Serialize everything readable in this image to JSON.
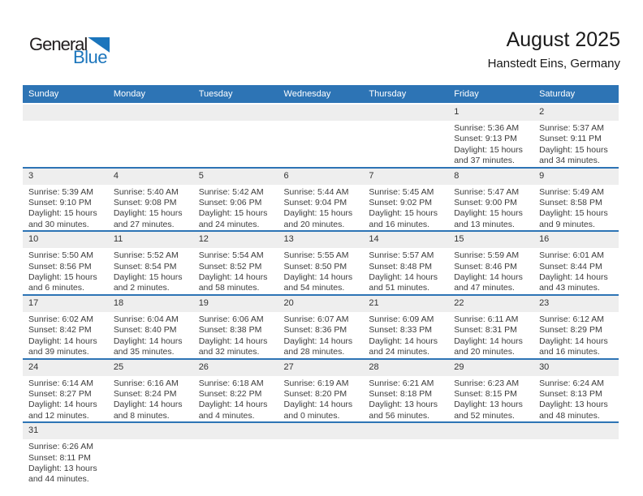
{
  "colors": {
    "header_blue": "#2D74B5",
    "separator_blue": "#2D74B5",
    "date_band_gray": "#EEEEEE",
    "logo_blue": "#1B75BC",
    "title_text": "#1A1A1A"
  },
  "logo": {
    "line1": "General",
    "line2": "Blue"
  },
  "header": {
    "title": "August 2025",
    "subtitle": "Hanstedt Eins, Germany"
  },
  "calendar": {
    "weekdays": [
      "Sunday",
      "Monday",
      "Tuesday",
      "Wednesday",
      "Thursday",
      "Friday",
      "Saturday"
    ],
    "weeks": [
      {
        "days": [
          {
            "date": ""
          },
          {
            "date": ""
          },
          {
            "date": ""
          },
          {
            "date": ""
          },
          {
            "date": ""
          },
          {
            "date": "1",
            "sunrise": "Sunrise: 5:36 AM",
            "sunset": "Sunset: 9:13 PM",
            "daylight1": "Daylight: 15 hours",
            "daylight2": "and 37 minutes."
          },
          {
            "date": "2",
            "sunrise": "Sunrise: 5:37 AM",
            "sunset": "Sunset: 9:11 PM",
            "daylight1": "Daylight: 15 hours",
            "daylight2": "and 34 minutes."
          }
        ]
      },
      {
        "days": [
          {
            "date": "3",
            "sunrise": "Sunrise: 5:39 AM",
            "sunset": "Sunset: 9:10 PM",
            "daylight1": "Daylight: 15 hours",
            "daylight2": "and 30 minutes."
          },
          {
            "date": "4",
            "sunrise": "Sunrise: 5:40 AM",
            "sunset": "Sunset: 9:08 PM",
            "daylight1": "Daylight: 15 hours",
            "daylight2": "and 27 minutes."
          },
          {
            "date": "5",
            "sunrise": "Sunrise: 5:42 AM",
            "sunset": "Sunset: 9:06 PM",
            "daylight1": "Daylight: 15 hours",
            "daylight2": "and 24 minutes."
          },
          {
            "date": "6",
            "sunrise": "Sunrise: 5:44 AM",
            "sunset": "Sunset: 9:04 PM",
            "daylight1": "Daylight: 15 hours",
            "daylight2": "and 20 minutes."
          },
          {
            "date": "7",
            "sunrise": "Sunrise: 5:45 AM",
            "sunset": "Sunset: 9:02 PM",
            "daylight1": "Daylight: 15 hours",
            "daylight2": "and 16 minutes."
          },
          {
            "date": "8",
            "sunrise": "Sunrise: 5:47 AM",
            "sunset": "Sunset: 9:00 PM",
            "daylight1": "Daylight: 15 hours",
            "daylight2": "and 13 minutes."
          },
          {
            "date": "9",
            "sunrise": "Sunrise: 5:49 AM",
            "sunset": "Sunset: 8:58 PM",
            "daylight1": "Daylight: 15 hours",
            "daylight2": "and 9 minutes."
          }
        ]
      },
      {
        "days": [
          {
            "date": "10",
            "sunrise": "Sunrise: 5:50 AM",
            "sunset": "Sunset: 8:56 PM",
            "daylight1": "Daylight: 15 hours",
            "daylight2": "and 6 minutes."
          },
          {
            "date": "11",
            "sunrise": "Sunrise: 5:52 AM",
            "sunset": "Sunset: 8:54 PM",
            "daylight1": "Daylight: 15 hours",
            "daylight2": "and 2 minutes."
          },
          {
            "date": "12",
            "sunrise": "Sunrise: 5:54 AM",
            "sunset": "Sunset: 8:52 PM",
            "daylight1": "Daylight: 14 hours",
            "daylight2": "and 58 minutes."
          },
          {
            "date": "13",
            "sunrise": "Sunrise: 5:55 AM",
            "sunset": "Sunset: 8:50 PM",
            "daylight1": "Daylight: 14 hours",
            "daylight2": "and 54 minutes."
          },
          {
            "date": "14",
            "sunrise": "Sunrise: 5:57 AM",
            "sunset": "Sunset: 8:48 PM",
            "daylight1": "Daylight: 14 hours",
            "daylight2": "and 51 minutes."
          },
          {
            "date": "15",
            "sunrise": "Sunrise: 5:59 AM",
            "sunset": "Sunset: 8:46 PM",
            "daylight1": "Daylight: 14 hours",
            "daylight2": "and 47 minutes."
          },
          {
            "date": "16",
            "sunrise": "Sunrise: 6:01 AM",
            "sunset": "Sunset: 8:44 PM",
            "daylight1": "Daylight: 14 hours",
            "daylight2": "and 43 minutes."
          }
        ]
      },
      {
        "days": [
          {
            "date": "17",
            "sunrise": "Sunrise: 6:02 AM",
            "sunset": "Sunset: 8:42 PM",
            "daylight1": "Daylight: 14 hours",
            "daylight2": "and 39 minutes."
          },
          {
            "date": "18",
            "sunrise": "Sunrise: 6:04 AM",
            "sunset": "Sunset: 8:40 PM",
            "daylight1": "Daylight: 14 hours",
            "daylight2": "and 35 minutes."
          },
          {
            "date": "19",
            "sunrise": "Sunrise: 6:06 AM",
            "sunset": "Sunset: 8:38 PM",
            "daylight1": "Daylight: 14 hours",
            "daylight2": "and 32 minutes."
          },
          {
            "date": "20",
            "sunrise": "Sunrise: 6:07 AM",
            "sunset": "Sunset: 8:36 PM",
            "daylight1": "Daylight: 14 hours",
            "daylight2": "and 28 minutes."
          },
          {
            "date": "21",
            "sunrise": "Sunrise: 6:09 AM",
            "sunset": "Sunset: 8:33 PM",
            "daylight1": "Daylight: 14 hours",
            "daylight2": "and 24 minutes."
          },
          {
            "date": "22",
            "sunrise": "Sunrise: 6:11 AM",
            "sunset": "Sunset: 8:31 PM",
            "daylight1": "Daylight: 14 hours",
            "daylight2": "and 20 minutes."
          },
          {
            "date": "23",
            "sunrise": "Sunrise: 6:12 AM",
            "sunset": "Sunset: 8:29 PM",
            "daylight1": "Daylight: 14 hours",
            "daylight2": "and 16 minutes."
          }
        ]
      },
      {
        "days": [
          {
            "date": "24",
            "sunrise": "Sunrise: 6:14 AM",
            "sunset": "Sunset: 8:27 PM",
            "daylight1": "Daylight: 14 hours",
            "daylight2": "and 12 minutes."
          },
          {
            "date": "25",
            "sunrise": "Sunrise: 6:16 AM",
            "sunset": "Sunset: 8:24 PM",
            "daylight1": "Daylight: 14 hours",
            "daylight2": "and 8 minutes."
          },
          {
            "date": "26",
            "sunrise": "Sunrise: 6:18 AM",
            "sunset": "Sunset: 8:22 PM",
            "daylight1": "Daylight: 14 hours",
            "daylight2": "and 4 minutes."
          },
          {
            "date": "27",
            "sunrise": "Sunrise: 6:19 AM",
            "sunset": "Sunset: 8:20 PM",
            "daylight1": "Daylight: 14 hours",
            "daylight2": "and 0 minutes."
          },
          {
            "date": "28",
            "sunrise": "Sunrise: 6:21 AM",
            "sunset": "Sunset: 8:18 PM",
            "daylight1": "Daylight: 13 hours",
            "daylight2": "and 56 minutes."
          },
          {
            "date": "29",
            "sunrise": "Sunrise: 6:23 AM",
            "sunset": "Sunset: 8:15 PM",
            "daylight1": "Daylight: 13 hours",
            "daylight2": "and 52 minutes."
          },
          {
            "date": "30",
            "sunrise": "Sunrise: 6:24 AM",
            "sunset": "Sunset: 8:13 PM",
            "daylight1": "Daylight: 13 hours",
            "daylight2": "and 48 minutes."
          }
        ]
      },
      {
        "days": [
          {
            "date": "31",
            "sunrise": "Sunrise: 6:26 AM",
            "sunset": "Sunset: 8:11 PM",
            "daylight1": "Daylight: 13 hours",
            "daylight2": "and 44 minutes."
          },
          {
            "date": ""
          },
          {
            "date": ""
          },
          {
            "date": ""
          },
          {
            "date": ""
          },
          {
            "date": ""
          },
          {
            "date": ""
          }
        ]
      }
    ]
  }
}
